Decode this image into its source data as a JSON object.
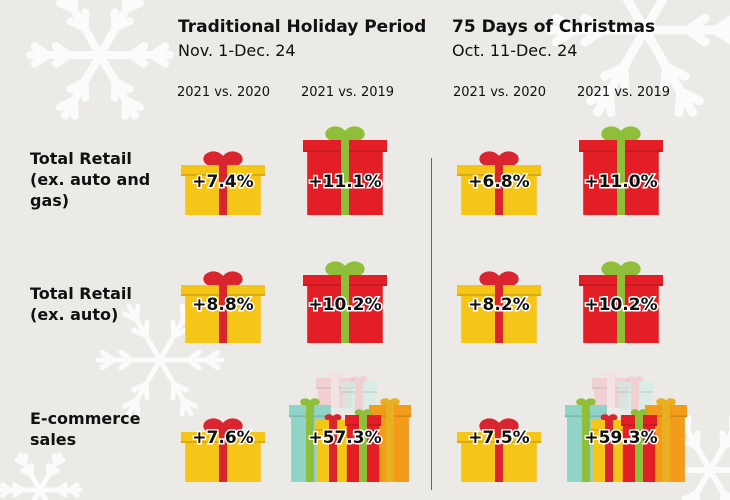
{
  "header": {
    "left_title": "Traditional Holiday Period",
    "left_sub": "Nov. 1-Dec. 24",
    "right_title": "75 Days of Christmas",
    "right_sub": "Oct. 11-Dec. 24"
  },
  "comparisons": [
    "2021 vs. 2020",
    "2021 vs. 2019",
    "2021 vs. 2020",
    "2021 vs. 2019"
  ],
  "rows": [
    {
      "label_lines": [
        "Total Retail",
        "(ex. auto and",
        "gas)"
      ]
    },
    {
      "label_lines": [
        "Total Retail",
        "(ex. auto)"
      ]
    },
    {
      "label_lines": [
        "E-commerce",
        "sales"
      ]
    }
  ],
  "colors": {
    "background": "#eceae6",
    "gift_yellow": "#f5c518",
    "gift_red": "#e41e26",
    "ribbon_red": "#d9252f",
    "ribbon_green": "#8fbf3a",
    "gift_teal": "#8fd4c6",
    "gift_orange": "#f39c1a",
    "gift_pink": "#f3c0c8"
  },
  "chart_data": {
    "type": "table",
    "periods": [
      {
        "name": "Traditional Holiday Period",
        "dates": "Nov. 1-Dec. 24"
      },
      {
        "name": "75 Days of Christmas",
        "dates": "Oct. 11-Dec. 24"
      }
    ],
    "comparisons": [
      "2021 vs. 2020",
      "2021 vs. 2019"
    ],
    "categories": [
      "Total Retail (ex. auto and gas)",
      "Total Retail (ex. auto)",
      "E-commerce sales"
    ],
    "series": [
      {
        "period": "Traditional Holiday Period",
        "comparison": "2021 vs. 2020",
        "values": [
          7.4,
          8.8,
          7.6
        ],
        "labels": [
          "+7.4%",
          "+8.8%",
          "+7.6%"
        ]
      },
      {
        "period": "Traditional Holiday Period",
        "comparison": "2021 vs. 2019",
        "values": [
          11.1,
          10.2,
          57.3
        ],
        "labels": [
          "+11.1%",
          "+10.2%",
          "+57.3%"
        ]
      },
      {
        "period": "75 Days of Christmas",
        "comparison": "2021 vs. 2020",
        "values": [
          6.8,
          8.2,
          7.5
        ],
        "labels": [
          "+6.8%",
          "+8.2%",
          "+7.5%"
        ]
      },
      {
        "period": "75 Days of Christmas",
        "comparison": "2021 vs. 2019",
        "values": [
          11.0,
          10.2,
          59.3
        ],
        "labels": [
          "+11.0%",
          "+10.2%",
          "+59.3%"
        ]
      }
    ]
  }
}
